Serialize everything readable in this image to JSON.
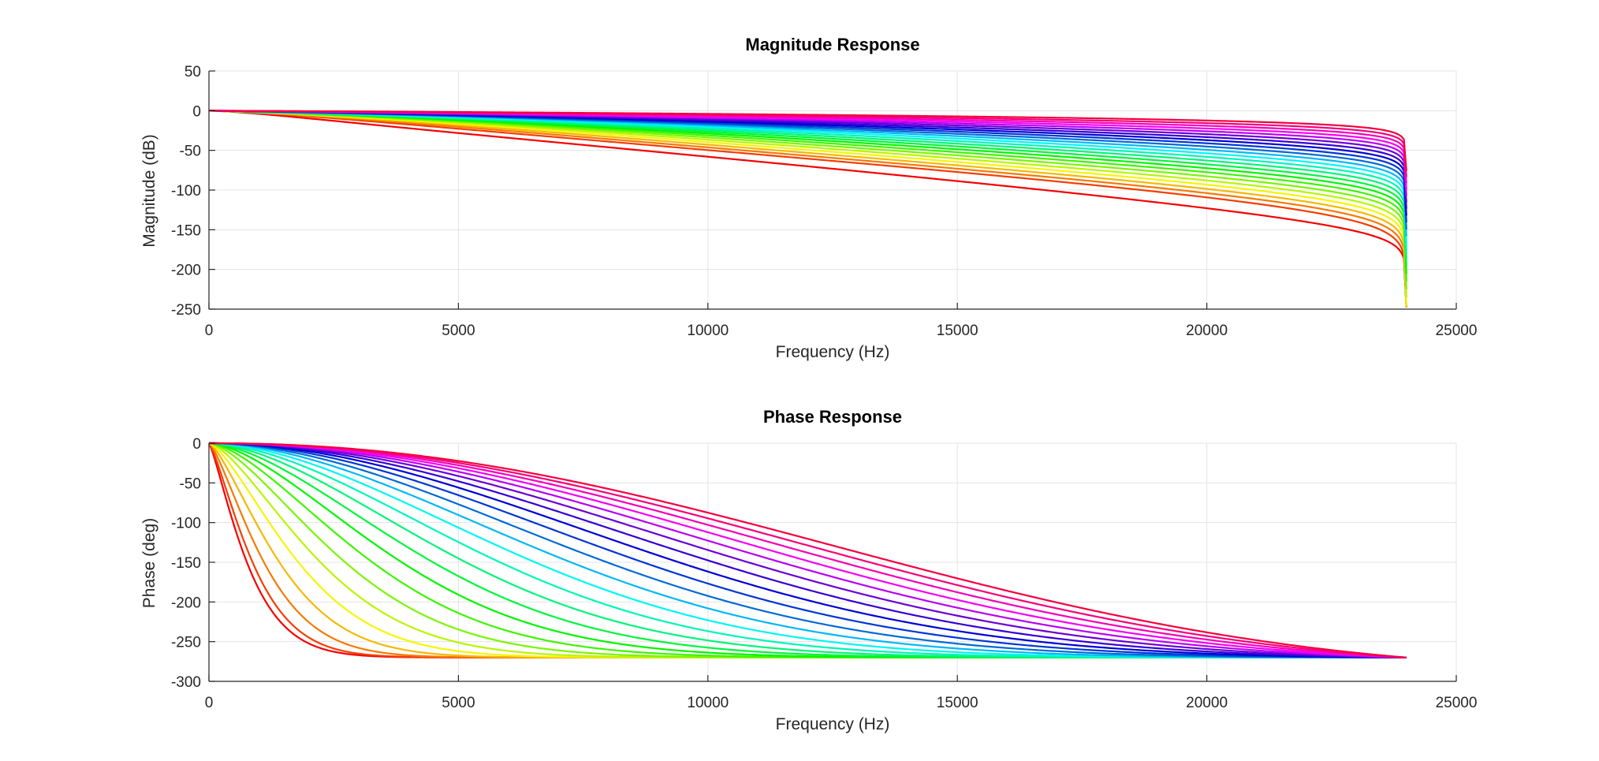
{
  "chart_data": [
    {
      "type": "line",
      "title": "Magnitude Response",
      "xlabel": "Frequency (Hz)",
      "ylabel": "Magnitude (dB)",
      "xlim": [
        0,
        25000
      ],
      "ylim": [
        -250,
        50
      ],
      "xticks": [
        0,
        5000,
        10000,
        15000,
        20000,
        25000
      ],
      "yticks": [
        50,
        0,
        -50,
        -100,
        -150,
        -200,
        -250
      ],
      "grid": true,
      "legend": "none",
      "curve_count": 24,
      "colors": [
        "#ff0000",
        "#ff4000",
        "#ff8000",
        "#ffbf00",
        "#ffff00",
        "#bfff00",
        "#80ff00",
        "#40ff00",
        "#00ff00",
        "#00ff40",
        "#00ff80",
        "#00ffbf",
        "#00ffff",
        "#00bfff",
        "#0080ff",
        "#0040ff",
        "#0000ff",
        "#4000ff",
        "#8000ff",
        "#bf00ff",
        "#ff00ff",
        "#ff00bf",
        "#ff0080",
        "#ff0040"
      ],
      "series_note": "",
      "representative_series": [
        {
          "x": [
            0,
            1000,
            2000,
            5000,
            10000,
            15000,
            20000,
            22000,
            23000,
            23800,
            24000
          ],
          "y": [
            0,
            -2,
            -18,
            -45,
            -65,
            -82,
            -107,
            -120,
            -135,
            -170,
            -240
          ]
        },
        {
          "x": [
            0,
            5000,
            10000,
            15000,
            20000,
            22000,
            23000,
            23800,
            24000
          ],
          "y": [
            0,
            -5,
            -10,
            -14,
            -19,
            -30,
            -48,
            -80,
            -110
          ]
        }
      ]
    },
    {
      "type": "line",
      "title": "Phase Response",
      "xlabel": "Frequency (Hz)",
      "ylabel": "Phase (deg)",
      "xlim": [
        0,
        25000
      ],
      "ylim": [
        -300,
        0
      ],
      "xticks": [
        0,
        5000,
        10000,
        15000,
        20000,
        25000
      ],
      "yticks": [
        0,
        -50,
        -100,
        -150,
        -200,
        -250,
        -300
      ],
      "grid": true,
      "legend": "none",
      "end_point": [
        24000,
        -270
      ],
      "representative_series": [
        {
          "x": [
            0,
            1000,
            2000,
            3000,
            5000,
            10000,
            15000,
            20000,
            24000
          ],
          "y": [
            0,
            -100,
            -200,
            -225,
            -245,
            -260,
            -265,
            -268,
            -270
          ]
        },
        {
          "x": [
            0,
            5000,
            10000,
            15000,
            18000,
            20000,
            22000,
            24000
          ],
          "y": [
            0,
            -10,
            -25,
            -50,
            -80,
            -135,
            -210,
            -270
          ]
        }
      ]
    }
  ]
}
